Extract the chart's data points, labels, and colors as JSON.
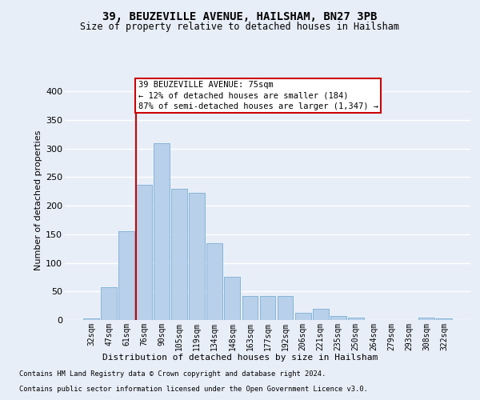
{
  "title1": "39, BEUZEVILLE AVENUE, HAILSHAM, BN27 3PB",
  "title2": "Size of property relative to detached houses in Hailsham",
  "xlabel": "Distribution of detached houses by size in Hailsham",
  "ylabel": "Number of detached properties",
  "categories": [
    "32sqm",
    "47sqm",
    "61sqm",
    "76sqm",
    "90sqm",
    "105sqm",
    "119sqm",
    "134sqm",
    "148sqm",
    "163sqm",
    "177sqm",
    "192sqm",
    "206sqm",
    "221sqm",
    "235sqm",
    "250sqm",
    "264sqm",
    "279sqm",
    "293sqm",
    "308sqm",
    "322sqm"
  ],
  "values": [
    3,
    57,
    155,
    236,
    310,
    229,
    222,
    135,
    76,
    42,
    42,
    42,
    12,
    20,
    7,
    4,
    0,
    0,
    0,
    4,
    3
  ],
  "bar_color": "#b8d0ea",
  "bar_edge_color": "#7aafd4",
  "vline_index": 3,
  "vline_color": "#cc0000",
  "annotation_line1": "39 BEUZEVILLE AVENUE: 75sqm",
  "annotation_line2": "← 12% of detached houses are smaller (184)",
  "annotation_line3": "87% of semi-detached houses are larger (1,347) →",
  "annotation_box_facecolor": "#ffffff",
  "annotation_box_edgecolor": "#cc0000",
  "footer1": "Contains HM Land Registry data © Crown copyright and database right 2024.",
  "footer2": "Contains public sector information licensed under the Open Government Licence v3.0.",
  "ylim": [
    0,
    420
  ],
  "yticks": [
    0,
    50,
    100,
    150,
    200,
    250,
    300,
    350,
    400
  ],
  "bg_color": "#e8eef8",
  "plot_bg_color": "#e8eef8",
  "grid_color": "#ffffff"
}
